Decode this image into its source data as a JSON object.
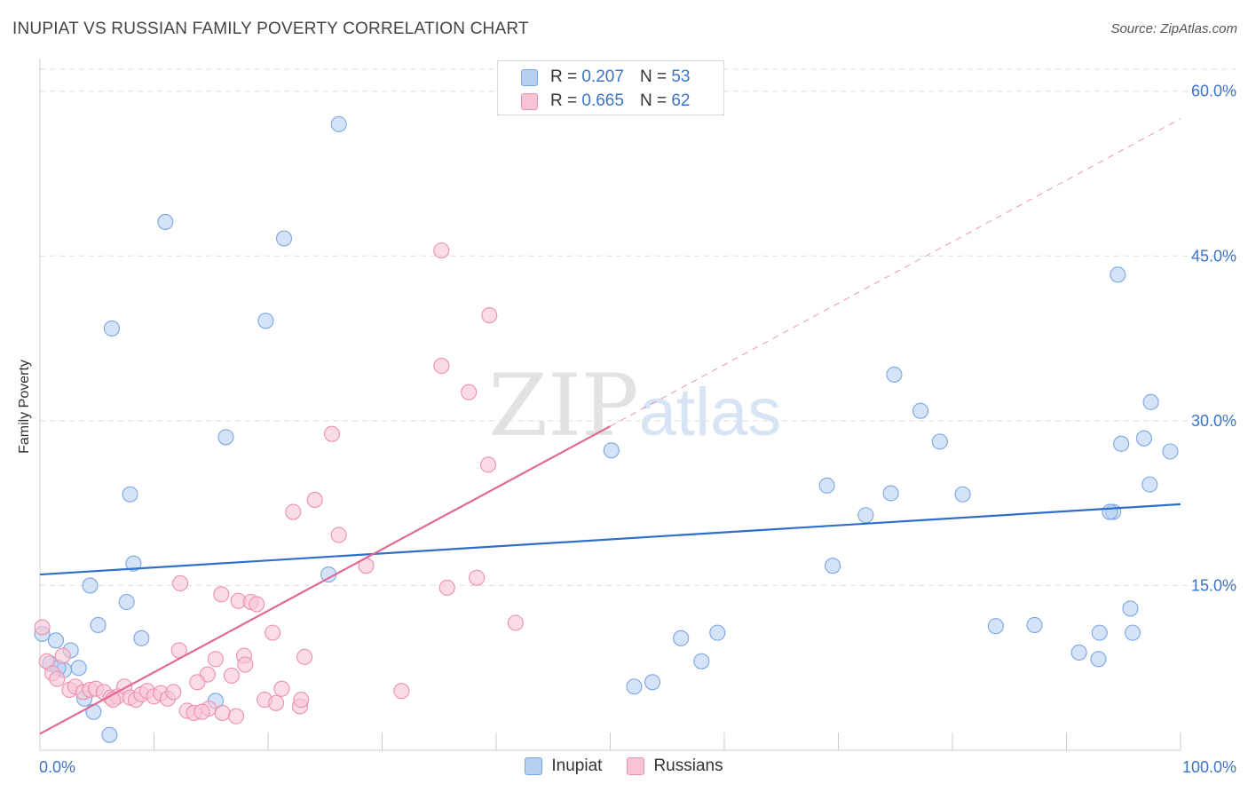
{
  "header": {
    "title": "INUPIAT VS RUSSIAN FAMILY POVERTY CORRELATION CHART",
    "source": "Source: ZipAtlas.com"
  },
  "legend": {
    "inupiat": {
      "r_label": "R =",
      "r_value": "0.207",
      "n_label": "N =",
      "n_value": "53"
    },
    "russians": {
      "r_label": "R =",
      "r_value": "0.665",
      "n_label": "N =",
      "n_value": "62"
    }
  },
  "watermark": {
    "part1": "ZIP",
    "part2": "atlas"
  },
  "colors": {
    "inupiat_fill": "#b8d1f3",
    "inupiat_stroke": "#7aa6e0",
    "inupiat_line": "#2f6fcc",
    "russians_fill": "#f8c4d4",
    "russians_stroke": "#ec8fae",
    "russians_line": "#e06a94",
    "tick_label": "#3a73c8",
    "grid": "#dddddd"
  },
  "chart_data": {
    "type": "scatter",
    "title": "INUPIAT VS RUSSIAN FAMILY POVERTY CORRELATION CHART",
    "xlabel": "",
    "ylabel": "Family Poverty",
    "xlim": [
      0,
      100
    ],
    "ylim": [
      0,
      62
    ],
    "x_tick_labels": [
      {
        "value": 0,
        "label": "0.0%"
      },
      {
        "value": 100,
        "label": "100.0%"
      }
    ],
    "y_tick_labels": [
      {
        "value": 15,
        "label": "15.0%"
      },
      {
        "value": 30,
        "label": "30.0%"
      },
      {
        "value": 45,
        "label": "45.0%"
      },
      {
        "value": 60,
        "label": "60.0%"
      }
    ],
    "legend_position": "top-center",
    "series": [
      {
        "name": "Inupiat",
        "points": [
          [
            26.2,
            57.0
          ],
          [
            11.0,
            48.1
          ],
          [
            21.4,
            46.6
          ],
          [
            19.8,
            39.1
          ],
          [
            6.3,
            38.4
          ],
          [
            16.3,
            28.5
          ],
          [
            7.9,
            23.3
          ],
          [
            8.2,
            17.0
          ],
          [
            25.3,
            16.0
          ],
          [
            4.4,
            15.0
          ],
          [
            7.6,
            13.5
          ],
          [
            5.1,
            11.4
          ],
          [
            8.9,
            10.2
          ],
          [
            1.4,
            10.0
          ],
          [
            2.7,
            9.1
          ],
          [
            0.2,
            10.6
          ],
          [
            0.9,
            7.9
          ],
          [
            3.4,
            7.5
          ],
          [
            2.1,
            7.3
          ],
          [
            1.6,
            7.5
          ],
          [
            3.9,
            4.7
          ],
          [
            15.4,
            4.5
          ],
          [
            4.7,
            3.5
          ],
          [
            6.1,
            1.4
          ],
          [
            59.4,
            10.7
          ],
          [
            58.0,
            8.1
          ],
          [
            56.2,
            10.2
          ],
          [
            53.7,
            6.2
          ],
          [
            52.1,
            5.8
          ],
          [
            50.1,
            27.3
          ],
          [
            69.0,
            24.1
          ],
          [
            69.5,
            16.8
          ],
          [
            72.4,
            21.4
          ],
          [
            74.9,
            34.2
          ],
          [
            74.6,
            23.4
          ],
          [
            77.2,
            30.9
          ],
          [
            80.9,
            23.3
          ],
          [
            78.9,
            28.1
          ],
          [
            83.8,
            11.3
          ],
          [
            87.2,
            11.4
          ],
          [
            91.1,
            8.9
          ],
          [
            92.8,
            8.3
          ],
          [
            94.5,
            43.3
          ],
          [
            94.8,
            27.9
          ],
          [
            94.1,
            21.7
          ],
          [
            93.8,
            21.7
          ],
          [
            95.6,
            12.9
          ],
          [
            95.8,
            10.7
          ],
          [
            97.4,
            31.7
          ],
          [
            96.8,
            28.4
          ],
          [
            97.3,
            24.2
          ],
          [
            99.1,
            27.2
          ],
          [
            92.9,
            10.7
          ]
        ]
      },
      {
        "name": "Russians",
        "points": [
          [
            35.2,
            45.5
          ],
          [
            39.4,
            39.6
          ],
          [
            35.2,
            35.0
          ],
          [
            37.6,
            32.6
          ],
          [
            25.6,
            28.8
          ],
          [
            39.3,
            26.0
          ],
          [
            24.1,
            22.8
          ],
          [
            22.2,
            21.7
          ],
          [
            26.2,
            19.6
          ],
          [
            28.6,
            16.8
          ],
          [
            38.3,
            15.7
          ],
          [
            35.7,
            14.8
          ],
          [
            41.7,
            11.6
          ],
          [
            12.3,
            15.2
          ],
          [
            15.9,
            14.2
          ],
          [
            17.4,
            13.6
          ],
          [
            18.5,
            13.5
          ],
          [
            19.0,
            13.3
          ],
          [
            20.4,
            10.7
          ],
          [
            12.2,
            9.1
          ],
          [
            23.2,
            8.5
          ],
          [
            17.9,
            8.6
          ],
          [
            15.4,
            8.3
          ],
          [
            18.0,
            7.8
          ],
          [
            16.8,
            6.8
          ],
          [
            14.7,
            6.9
          ],
          [
            13.8,
            6.2
          ],
          [
            0.2,
            11.2
          ],
          [
            0.6,
            8.1
          ],
          [
            2.0,
            8.6
          ],
          [
            1.1,
            7.0
          ],
          [
            1.5,
            6.5
          ],
          [
            2.6,
            5.5
          ],
          [
            3.1,
            5.8
          ],
          [
            3.8,
            5.3
          ],
          [
            4.4,
            5.5
          ],
          [
            4.9,
            5.6
          ],
          [
            5.6,
            5.3
          ],
          [
            6.2,
            4.8
          ],
          [
            6.8,
            4.9
          ],
          [
            7.4,
            5.8
          ],
          [
            7.9,
            4.8
          ],
          [
            8.4,
            4.6
          ],
          [
            8.9,
            5.1
          ],
          [
            9.4,
            5.4
          ],
          [
            10.0,
            4.9
          ],
          [
            10.6,
            5.2
          ],
          [
            11.2,
            4.7
          ],
          [
            11.7,
            5.3
          ],
          [
            12.9,
            3.6
          ],
          [
            13.5,
            3.4
          ],
          [
            14.8,
            3.8
          ],
          [
            16.0,
            3.4
          ],
          [
            17.2,
            3.1
          ],
          [
            19.7,
            4.6
          ],
          [
            20.7,
            4.3
          ],
          [
            21.2,
            5.6
          ],
          [
            22.8,
            4.0
          ],
          [
            22.9,
            4.6
          ],
          [
            31.7,
            5.4
          ],
          [
            14.2,
            3.5
          ],
          [
            6.4,
            4.6
          ]
        ]
      }
    ],
    "trend_lines": [
      {
        "series": "Inupiat",
        "x": [
          0,
          100
        ],
        "y": [
          16.0,
          22.4
        ],
        "style": "solid"
      },
      {
        "series": "Russians",
        "x": [
          0,
          50
        ],
        "y": [
          1.5,
          29.5
        ],
        "style": "solid"
      },
      {
        "series": "Russians",
        "x": [
          50,
          100
        ],
        "y": [
          29.5,
          57.5
        ],
        "style": "dashed"
      }
    ],
    "grid": true
  }
}
